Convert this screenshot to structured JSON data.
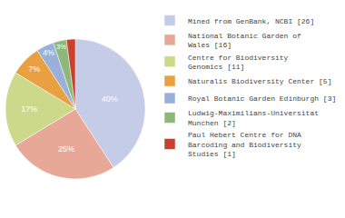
{
  "chart_data": {
    "type": "pie",
    "labels": [
      "Mined from GenBank, NCBI [26]",
      "National Botanic Garden of\nWales [16]",
      "Centre for Biodiversity\nGenomics [11]",
      "Naturalis Biodiversity Center [5]",
      "Royal Botanic Garden Edinburgh [3]",
      "Ludwig-Maximilians-Universitat\nMunchen [2]",
      "Paul Hebert Centre for DNA\nBarcoding and Biodiversity\nStudies [1]"
    ],
    "values": [
      40,
      25,
      17,
      7,
      4,
      3,
      2
    ],
    "value_labels": [
      "40%",
      "25%",
      "17%",
      "7%",
      "4%",
      "3%",
      null
    ],
    "data_labels": true,
    "colors": [
      "#c5cce8",
      "#e8a898",
      "#ccd98a",
      "#e8a040",
      "#9ab0d8",
      "#8db87a",
      "#c84030"
    ],
    "legend": "right"
  }
}
